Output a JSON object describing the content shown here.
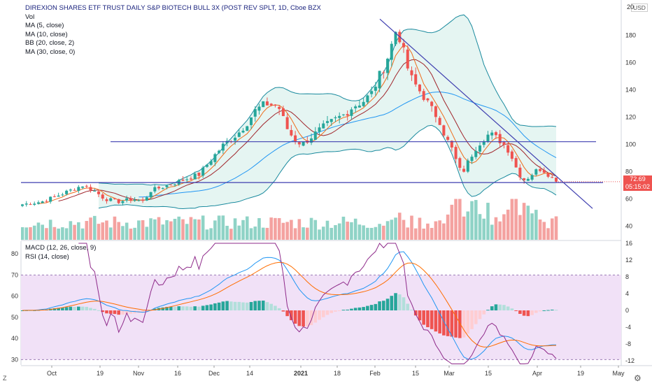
{
  "legend": {
    "title": "DIREXION SHARES ETF TRUST DAILY S&P BIOTECH BULL 3X (POST REV SPLT, 1D, Cboe BZX",
    "lines": [
      "Vol",
      "MA (5, close)",
      "MA (10, close)",
      "BB (20, close, 2)",
      "MA (30, close, 0)"
    ]
  },
  "lower_legend": [
    "MACD (12, 26, close, 9)",
    "RSI (14, close)"
  ],
  "currency": "USD",
  "top_right_clip": "20",
  "price_badge": {
    "price": "72.69",
    "countdown": "05:15:02"
  },
  "corner_labels": {
    "left": "Z",
    "gear": "⚙",
    "right_glyph": "⚙"
  },
  "colors": {
    "up": "#26a69a",
    "down": "#ef5350",
    "vol_up": "#8fd3c6",
    "vol_down": "#f4a2a0",
    "ma5": "#ef6c1a",
    "ma10": "#a0252b",
    "ma30": "#2196f3",
    "bb": "#1a8a9e",
    "bb_fill": "#e5f5f2",
    "hline": "#3f3fb0",
    "trend": "#3f3fb0",
    "macd": "#2196f3",
    "signal": "#ff6d00",
    "rsi": "#8e2a8a",
    "rsi_band": "#f1e1f7",
    "hist_pos": "#26a69a",
    "hist_pos_light": "#b2dfdb",
    "hist_neg": "#ef5350",
    "hist_neg_light": "#ffcdd2"
  },
  "chart_data": [
    {
      "type": "candlestick",
      "title": "DIREXION SHARES ETF TRUST DAILY S&P BIOTECH BULL 3X (POST REV SPLT, 1D, Cboe BZX",
      "y_ticks": [
        40,
        60,
        80,
        100,
        120,
        140,
        160,
        180
      ],
      "ylim": [
        30,
        205
      ],
      "x_ticks": [
        "Oct",
        "19",
        "Nov",
        "16",
        "Dec",
        "14",
        "2021",
        "18",
        "Feb",
        "15",
        "Mar",
        "15",
        "Apr",
        "19",
        "May"
      ],
      "horizontal_lines": [
        102,
        72
      ],
      "trendline": {
        "from": [
          "2021-02-08",
          192
        ],
        "to": [
          "2021-04-16",
          53
        ]
      },
      "last_price": 72.69
    },
    {
      "type": "line",
      "indicator": "MACD (12, 26, close, 9)",
      "y_ticks": [
        16,
        12,
        8,
        4,
        0,
        -4,
        -8,
        -12
      ],
      "ylim": [
        -13,
        16.5
      ]
    },
    {
      "type": "line",
      "indicator": "RSI (14, close)",
      "y_ticks": [
        80,
        70,
        60,
        50,
        40,
        30
      ],
      "ylim": [
        27.5,
        86
      ],
      "band": [
        30,
        70
      ]
    }
  ]
}
